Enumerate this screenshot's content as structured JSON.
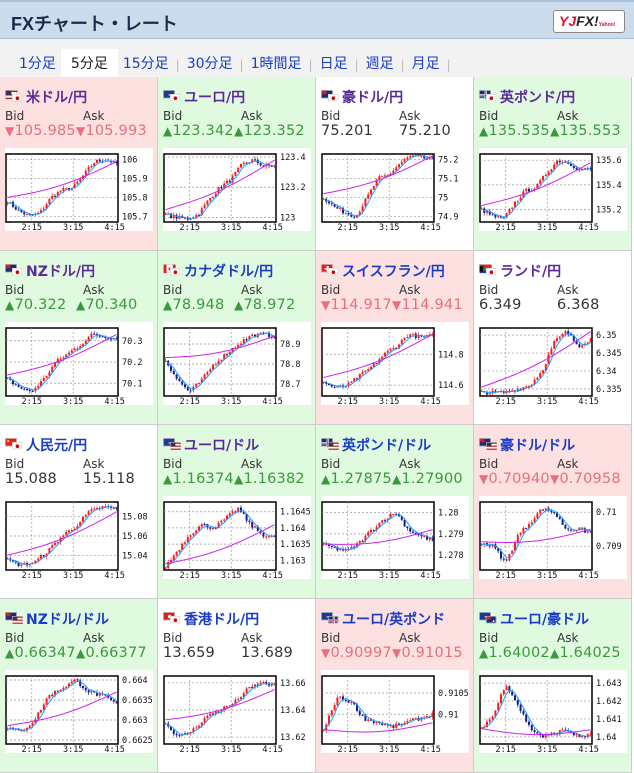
{
  "header": {
    "title": "FXチャート・レート",
    "logo": "YJFX!",
    "logo_sub": "Yahoo!"
  },
  "tabs": [
    {
      "label": "1分足",
      "active": false
    },
    {
      "label": "5分足",
      "active": true
    },
    {
      "label": "15分足",
      "active": false
    },
    {
      "label": "30分足",
      "active": false
    },
    {
      "label": "1時間足",
      "active": false
    },
    {
      "label": "日足",
      "active": false
    },
    {
      "label": "週足",
      "active": false
    },
    {
      "label": "月足",
      "active": false
    }
  ],
  "labels": {
    "bid": "Bid",
    "ask": "Ask"
  },
  "arrows": {
    "up": "▲",
    "down": "▼"
  },
  "colors": {
    "down_bg": "#fde0e0",
    "up_bg": "#e0fae0",
    "down_text": "#e8707a",
    "up_text": "#3a9a3a",
    "candle_up": "#ff1a1a",
    "candle_down": "#1a1a8c",
    "ma_short": "#1aa0ff",
    "ma_long": "#cc22ee"
  },
  "time_labels": [
    "2:15",
    "3:15",
    "4:15"
  ],
  "pairs": [
    {
      "name": "米ドル/円",
      "dir": "down",
      "visited": true,
      "flags": [
        "us",
        "jp"
      ],
      "bid": "105.985",
      "ask": "105.993",
      "chart": {
        "ticks": [
          "106",
          "105.9",
          "105.8",
          "105.7"
        ],
        "ylim": [
          105.67,
          106.03
        ],
        "path": [
          105.78,
          105.73,
          105.7,
          105.72,
          105.8,
          105.84,
          105.85,
          105.92,
          105.99,
          106.0,
          105.98
        ]
      }
    },
    {
      "name": "ユーロ/円",
      "dir": "up",
      "visited": true,
      "flags": [
        "eu",
        "jp"
      ],
      "bid": "123.342",
      "ask": "123.352",
      "chart": {
        "ticks": [
          "123.4",
          "123.2",
          "123"
        ],
        "ylim": [
          122.97,
          123.42
        ],
        "path": [
          123.02,
          123.0,
          122.99,
          123.02,
          123.12,
          123.2,
          123.25,
          123.35,
          123.38,
          123.34,
          123.34
        ]
      }
    },
    {
      "name": "豪ドル/円",
      "dir": "flat",
      "visited": true,
      "flags": [
        "au",
        "jp"
      ],
      "bid": "75.201",
      "ask": "75.210",
      "chart": {
        "ticks": [
          "75.2",
          "75.1",
          "75",
          "74.9"
        ],
        "ylim": [
          74.87,
          75.23
        ],
        "path": [
          75.0,
          74.95,
          74.92,
          74.9,
          75.0,
          75.1,
          75.12,
          75.18,
          75.22,
          75.21,
          75.2
        ]
      }
    },
    {
      "name": "英ポンド/円",
      "dir": "up",
      "visited": true,
      "flags": [
        "gb",
        "jp"
      ],
      "bid": "135.535",
      "ask": "135.553",
      "chart": {
        "ticks": [
          "135.6",
          "135.4",
          "135.2"
        ],
        "ylim": [
          135.1,
          135.65
        ],
        "path": [
          135.2,
          135.15,
          135.12,
          135.25,
          135.35,
          135.38,
          135.5,
          135.6,
          135.58,
          135.52,
          135.53
        ]
      }
    },
    {
      "name": "NZドル/円",
      "dir": "up",
      "visited": true,
      "flags": [
        "nz",
        "jp"
      ],
      "bid": "70.322",
      "ask": "70.340",
      "chart": {
        "ticks": [
          "70.3",
          "70.2",
          "70.1"
        ],
        "ylim": [
          70.04,
          70.36
        ],
        "path": [
          70.12,
          70.08,
          70.06,
          70.12,
          70.2,
          70.24,
          70.28,
          70.33,
          70.32,
          70.31
        ]
      }
    },
    {
      "name": "カナダドル/円",
      "dir": "up",
      "visited": false,
      "flags": [
        "ca",
        "jp"
      ],
      "bid": "78.948",
      "ask": "78.972",
      "chart": {
        "ticks": [
          "78.9",
          "78.8",
          "78.7"
        ],
        "ylim": [
          78.64,
          78.98
        ],
        "path": [
          78.82,
          78.72,
          78.66,
          78.72,
          78.8,
          78.85,
          78.9,
          78.94,
          78.95,
          78.94
        ]
      }
    },
    {
      "name": "スイスフラン/円",
      "dir": "down",
      "visited": false,
      "flags": [
        "ch",
        "jp"
      ],
      "bid": "114.917",
      "ask": "114.941",
      "chart": {
        "ticks": [
          "114.8",
          "114.6"
        ],
        "ylim": [
          114.53,
          114.97
        ],
        "path": [
          114.62,
          114.58,
          114.6,
          114.66,
          114.72,
          114.8,
          114.85,
          114.93,
          114.91,
          114.92
        ]
      }
    },
    {
      "name": "ランド/円",
      "dir": "flat",
      "visited": true,
      "flags": [
        "za",
        "jp"
      ],
      "bid": "6.349",
      "ask": "6.368",
      "chart": {
        "ticks": [
          "6.35",
          "6.345",
          "6.34",
          "6.335"
        ],
        "ylim": [
          6.333,
          6.352
        ],
        "path": [
          6.334,
          6.334,
          6.334,
          6.335,
          6.336,
          6.34,
          6.348,
          6.351,
          6.347,
          6.349
        ]
      }
    },
    {
      "name": "人民元/円",
      "dir": "flat",
      "visited": false,
      "flags": [
        "cn",
        "jp"
      ],
      "bid": "15.088",
      "ask": "15.118",
      "chart": {
        "ticks": [
          "15.08",
          "15.06",
          "15.04"
        ],
        "ylim": [
          15.025,
          15.095
        ],
        "path": [
          15.035,
          15.03,
          15.033,
          15.045,
          15.06,
          15.07,
          15.085,
          15.09,
          15.088
        ]
      }
    },
    {
      "name": "ユーロ/ドル",
      "dir": "up",
      "visited": true,
      "flags": [
        "eu",
        "us"
      ],
      "bid": "1.16374",
      "ask": "1.16382",
      "chart": {
        "ticks": [
          "1.1645",
          "1.164",
          "1.1635",
          "1.163"
        ],
        "ylim": [
          1.1627,
          1.1648
        ],
        "path": [
          1.1628,
          1.1633,
          1.1638,
          1.1641,
          1.164,
          1.1643,
          1.1646,
          1.1641,
          1.1638,
          1.1637
        ]
      }
    },
    {
      "name": "英ポンド/ドル",
      "dir": "up",
      "visited": false,
      "flags": [
        "gb",
        "us"
      ],
      "bid": "1.27875",
      "ask": "1.27900",
      "chart": {
        "ticks": [
          "1.28",
          "1.279",
          "1.278"
        ],
        "ylim": [
          1.2773,
          1.2805
        ],
        "path": [
          1.2785,
          1.2783,
          1.2782,
          1.2786,
          1.2792,
          1.2797,
          1.28,
          1.2792,
          1.2789,
          1.2787
        ]
      }
    },
    {
      "name": "豪ドル/ドル",
      "dir": "down",
      "visited": false,
      "flags": [
        "au",
        "us"
      ],
      "bid": "0.70940",
      "ask": "0.70958",
      "chart": {
        "ticks": [
          "0.71",
          "0.709"
        ],
        "ylim": [
          0.7083,
          0.7103
        ],
        "path": [
          0.7091,
          0.709,
          0.7085,
          0.7093,
          0.7097,
          0.7101,
          0.71,
          0.7095,
          0.7095,
          0.7094
        ]
      }
    },
    {
      "name": "NZドル/ドル",
      "dir": "up",
      "visited": false,
      "flags": [
        "nz",
        "us"
      ],
      "bid": "0.66347",
      "ask": "0.66377",
      "chart": {
        "ticks": [
          "0.664",
          "0.6635",
          "0.663",
          "0.6625"
        ],
        "ylim": [
          0.6624,
          0.6641
        ],
        "path": [
          0.6628,
          0.6627,
          0.663,
          0.6636,
          0.6638,
          0.664,
          0.6637,
          0.6636,
          0.6634
        ]
      }
    },
    {
      "name": "香港ドル/円",
      "dir": "flat",
      "visited": false,
      "flags": [
        "hk",
        "jp"
      ],
      "bid": "13.659",
      "ask": "13.689",
      "chart": {
        "ticks": [
          "13.66",
          "13.64",
          "13.62"
        ],
        "ylim": [
          13.615,
          13.665
        ],
        "path": [
          13.63,
          13.62,
          13.625,
          13.635,
          13.64,
          13.645,
          13.655,
          13.66,
          13.658
        ]
      }
    },
    {
      "name": "ユーロ/英ポンド",
      "dir": "down",
      "visited": false,
      "flags": [
        "eu",
        "gb"
      ],
      "bid": "0.90997",
      "ask": "0.91015",
      "chart": {
        "ticks": [
          "0.9105",
          "0.91"
        ],
        "ylim": [
          0.9093,
          0.9109
        ],
        "path": [
          0.9096,
          0.9104,
          0.9103,
          0.9099,
          0.9098,
          0.9097,
          0.9098,
          0.9099,
          0.91
        ]
      }
    },
    {
      "name": "ユーロ/豪ドル",
      "dir": "up",
      "visited": false,
      "flags": [
        "eu",
        "au"
      ],
      "bid": "1.64002",
      "ask": "1.64025",
      "chart": {
        "ticks": [
          "1.643",
          "1.642",
          "1.641",
          "1.64"
        ],
        "ylim": [
          1.6396,
          1.6434
        ],
        "path": [
          1.6405,
          1.6412,
          1.643,
          1.6418,
          1.6405,
          1.64,
          1.6402,
          1.6404,
          1.64,
          1.6401
        ]
      }
    }
  ]
}
